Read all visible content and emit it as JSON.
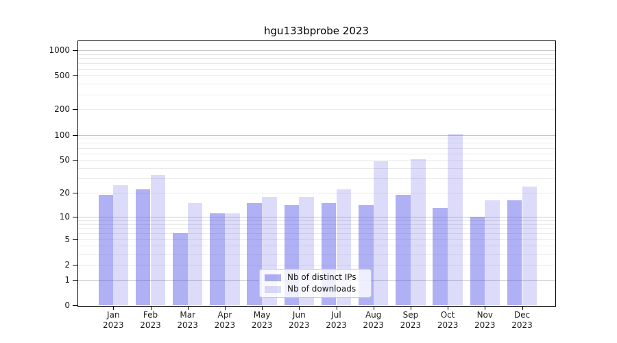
{
  "title": "hgu133bprobe 2023",
  "colors": {
    "ips_bar": "rgba(80,80,230,0.45)",
    "downloads_bar": "rgba(80,80,230,0.2)",
    "grid_minor": "#e9e9e9",
    "grid_decade": "#c6c6c6",
    "axis": "#000000"
  },
  "chart_data": {
    "type": "bar",
    "title": "hgu133bprobe 2023",
    "categories": [
      "Jan 2023",
      "Feb 2023",
      "Mar 2023",
      "Apr 2023",
      "May 2023",
      "Jun 2023",
      "Jul 2023",
      "Aug 2023",
      "Sep 2023",
      "Oct 2023",
      "Nov 2023",
      "Dec 2023"
    ],
    "series": [
      {
        "name": "Nb of distinct IPs",
        "values": [
          19,
          22,
          6,
          11,
          15,
          14,
          15,
          14,
          19,
          13,
          10,
          16
        ]
      },
      {
        "name": "Nb of downloads",
        "values": [
          25,
          33,
          15,
          11,
          18,
          18,
          22,
          48,
          51,
          103,
          16,
          24
        ]
      }
    ],
    "xlabel": "",
    "ylabel": "",
    "yscale": "log1p",
    "yticks": [
      0,
      1,
      2,
      5,
      10,
      20,
      50,
      100,
      200,
      500,
      1000
    ],
    "ylim": [
      0,
      1200
    ],
    "grid": true,
    "legend_position": "inside-bottom-center"
  }
}
